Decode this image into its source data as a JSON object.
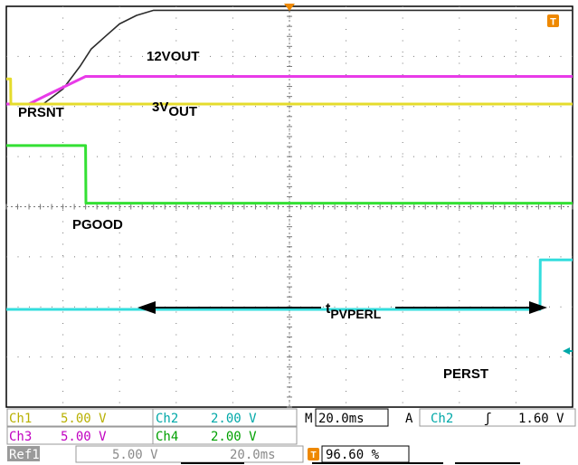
{
  "chart_data": {
    "type": "line",
    "xlim": [
      0,
      200
    ],
    "ylim": [
      0,
      8
    ],
    "grid": true,
    "series": [
      {
        "name": "12VOUT",
        "color": "#2b2b2b",
        "x": [
          0,
          8,
          13,
          20,
          26,
          30,
          35,
          40,
          46,
          52,
          200
        ],
        "y": [
          6.05,
          6.05,
          6.05,
          6.35,
          6.8,
          7.15,
          7.4,
          7.65,
          7.82,
          7.92,
          7.92
        ]
      },
      {
        "name": "3V_OUT",
        "color": "#e83be8",
        "x": [
          0,
          8,
          14,
          28,
          200
        ],
        "y": [
          6.05,
          6.05,
          6.22,
          6.6,
          6.6
        ]
      },
      {
        "name": "PRSNT",
        "color": "#e5dc2c",
        "x": [
          0,
          1.5,
          1.6,
          200
        ],
        "y": [
          6.55,
          6.55,
          6.05,
          6.05
        ]
      },
      {
        "name": "PGOOD",
        "color": "#33e033",
        "x": [
          0,
          28,
          28.1,
          200
        ],
        "y": [
          5.22,
          5.22,
          4.07,
          4.07
        ]
      },
      {
        "name": "PERST",
        "color": "#33dddd",
        "x": [
          0,
          188.5,
          188.6,
          200
        ],
        "y": [
          1.95,
          1.95,
          2.94,
          2.94
        ]
      }
    ],
    "labels": {
      "12vout": "12VOUT",
      "v3out_main": "3V",
      "v3out_sub": "OUT",
      "prsnt": "PRSNT",
      "pgood": "PGOOD",
      "perst": "PERST",
      "tpv_main": "t",
      "tpv_sub": "PVPERL"
    },
    "annotation": {
      "from_x": 28,
      "to_x": 188.5,
      "label": "tPVPERL"
    }
  },
  "readouts": {
    "ch1_label": "Ch1",
    "ch1_value": "5.00 V",
    "ch2_label": "Ch2",
    "ch2_value": "2.00 V",
    "ch3_label": "Ch3",
    "ch3_value": "5.00 V",
    "ch4_label": "Ch4",
    "ch4_value": "2.00 V",
    "m_label": "M",
    "timebase": "20.0ms",
    "a_label": "A",
    "trig_source": "Ch2",
    "trig_slope": "ʃ",
    "trig_level": "1.60 V",
    "ref1_label": "Ref1",
    "ref1_volts": "5.00 V",
    "ref1_time": "20.0ms",
    "trig_icon_text": "T",
    "trig_position": "96.60 %"
  },
  "colors": {
    "ch1": "#b8b000",
    "ch2": "#00a8a8",
    "ch3": "#c000c0",
    "ch4": "#00a000",
    "trigger": "#ee8800",
    "grid": "#777777",
    "frame": "#000000"
  }
}
